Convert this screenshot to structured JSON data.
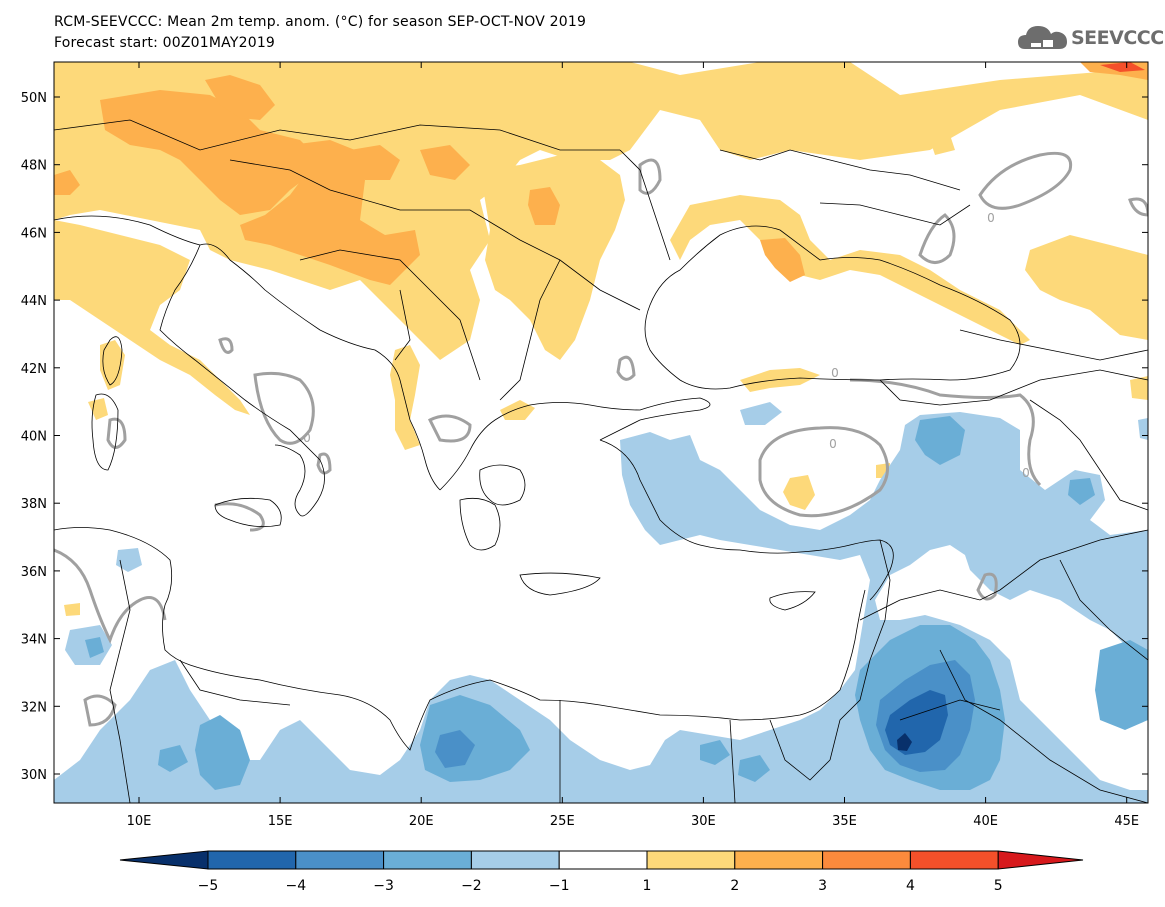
{
  "header": {
    "title": "RCM-SEEVCCC: Mean 2m temp. anom. (°C) for season SEP-OCT-NOV 2019",
    "subtitle": "Forecast start: 00Z01MAY2019"
  },
  "logo": {
    "text": "SEEVCCC",
    "icon": "cloud-icon"
  },
  "map": {
    "lat_labels": [
      "50N",
      "48N",
      "46N",
      "44N",
      "42N",
      "40N",
      "38N",
      "36N",
      "34N",
      "32N",
      "30N"
    ],
    "lon_labels": [
      "10E",
      "15E",
      "20E",
      "25E",
      "30E",
      "35E",
      "40E",
      "45E"
    ],
    "contour_label": "0"
  },
  "colorbar": {
    "labels": [
      "−5",
      "−4",
      "−3",
      "−2",
      "−1",
      "1",
      "2",
      "3",
      "4",
      "5"
    ],
    "colors": [
      "#08306b",
      "#2166ac",
      "#4a90c8",
      "#6aaed6",
      "#a6cde8",
      "#ffffff",
      "#fdd97a",
      "#fdb04d",
      "#fb8a3c",
      "#f4502a",
      "#d7191c"
    ]
  }
}
